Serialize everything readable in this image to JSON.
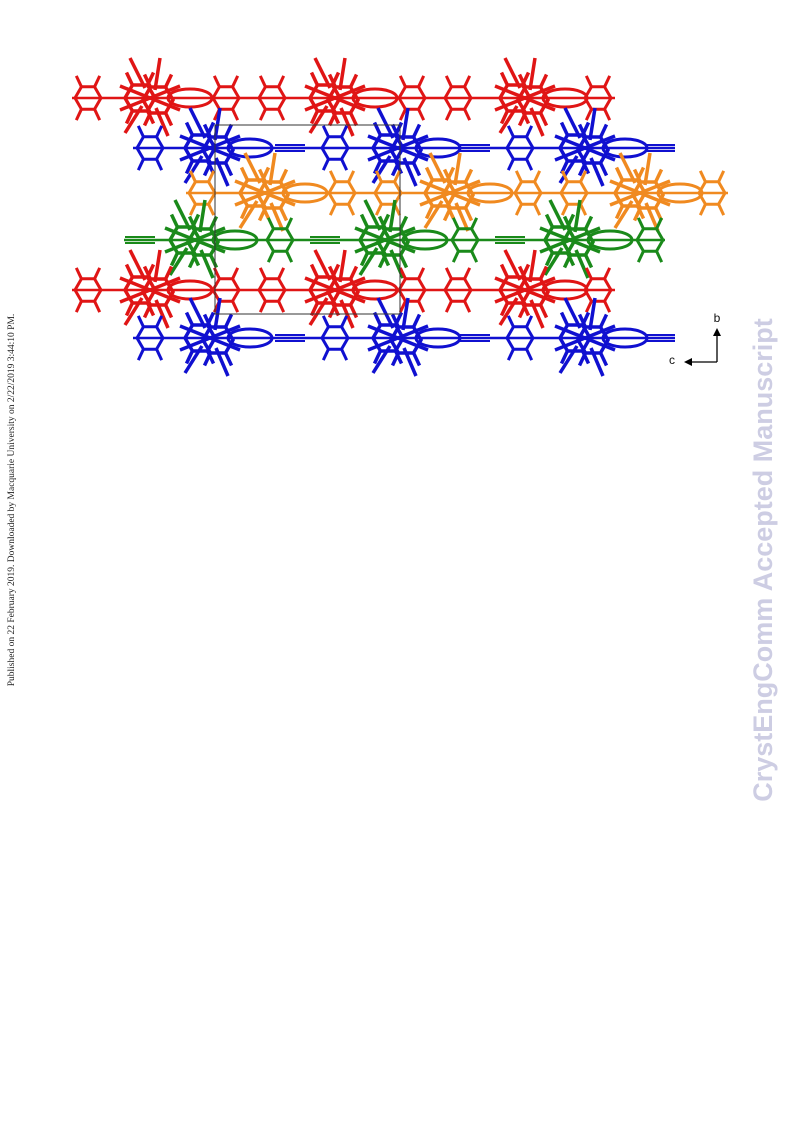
{
  "side_note": "Published on 22 February 2019. Downloaded by Macquarie University on 2/22/2019 3:44:10 PM.",
  "watermark": "CrystEngComm Accepted Manuscript",
  "figure": {
    "axis_b": "b",
    "axis_c": "c"
  }
}
